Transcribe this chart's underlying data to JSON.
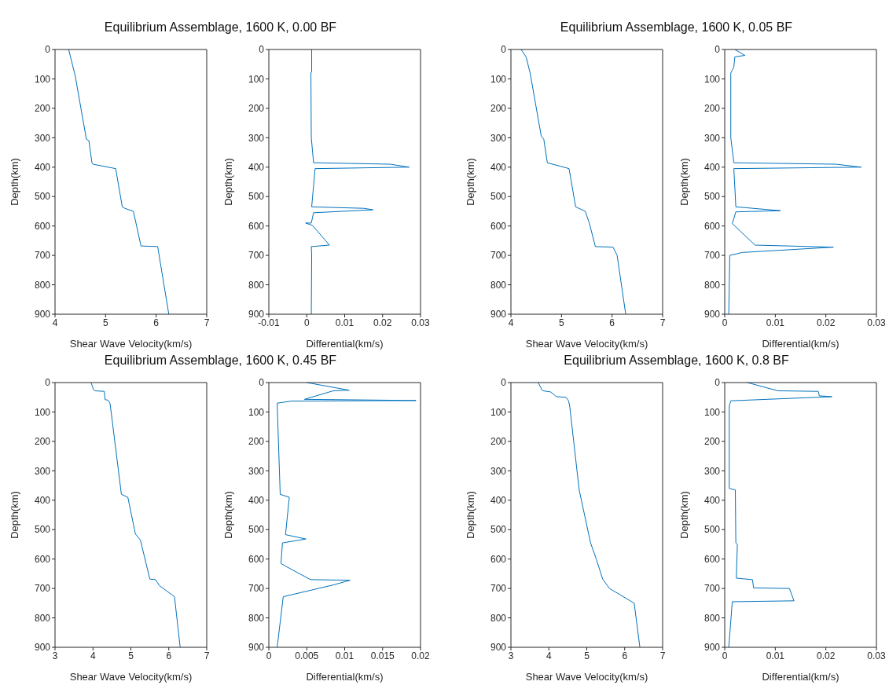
{
  "chart_data": [
    {
      "type": "line",
      "title": "Equilibrium Assemblage, 1600 K, 0.00 BF",
      "xlabel": "Shear Wave Velocity(km/s)",
      "ylabel": "Depth(km)",
      "xlim": [
        4,
        7
      ],
      "xticks": [
        4,
        5,
        6,
        7
      ],
      "ylim": [
        900,
        0
      ],
      "yticks": [
        0,
        100,
        200,
        300,
        400,
        500,
        600,
        700,
        800,
        900
      ],
      "grid": false,
      "series": [
        {
          "color": "#0072bd",
          "x": [
            4.27,
            4.4,
            4.62,
            4.67,
            4.73,
            4.75,
            5.2,
            5.33,
            5.38,
            5.55,
            5.7,
            6.03,
            6.25
          ],
          "values": [
            0,
            90,
            305,
            310,
            385,
            390,
            405,
            535,
            540,
            550,
            668,
            670,
            900
          ]
        }
      ]
    },
    {
      "type": "line",
      "xlabel": "Differential(km/s)",
      "ylabel": "Depth(km)",
      "xlim": [
        -0.01,
        0.03
      ],
      "xticks": [
        -0.01,
        0,
        0.01,
        0.02,
        0.03
      ],
      "ylim": [
        900,
        0
      ],
      "yticks": [
        0,
        100,
        200,
        300,
        400,
        500,
        600,
        700,
        800,
        900
      ],
      "grid": false,
      "series": [
        {
          "color": "#0072bd",
          "x": [
            0.0013,
            0.0013,
            0.0011,
            0.0012,
            0.0018,
            0.022,
            0.027,
            0.0022,
            0.0013,
            0.015,
            0.0175,
            0.0018,
            0.0012,
            -0.0003,
            0.0015,
            0.006,
            0.0012,
            0.0013,
            0.0012
          ],
          "values": [
            0,
            75,
            80,
            300,
            385,
            390,
            400,
            405,
            535,
            540,
            545,
            555,
            590,
            590,
            598,
            665,
            670,
            700,
            900
          ]
        }
      ]
    },
    {
      "type": "line",
      "title": "Equilibrium Assemblage, 1600 K, 0.05 BF",
      "xlabel": "Shear Wave Velocity(km/s)",
      "ylabel": "Depth(km)",
      "xlim": [
        4,
        7
      ],
      "xticks": [
        4,
        5,
        6,
        7
      ],
      "ylim": [
        900,
        0
      ],
      "yticks": [
        0,
        100,
        200,
        300,
        400,
        500,
        600,
        700,
        800,
        900
      ],
      "grid": false,
      "series": [
        {
          "color": "#0072bd",
          "x": [
            4.2,
            4.3,
            4.38,
            4.6,
            4.65,
            4.72,
            5.15,
            5.28,
            5.47,
            5.55,
            5.67,
            6.02,
            6.1,
            6.27
          ],
          "values": [
            0,
            25,
            80,
            295,
            305,
            385,
            405,
            535,
            550,
            590,
            670,
            672,
            700,
            900
          ]
        }
      ]
    },
    {
      "type": "line",
      "xlabel": "Differential(km/s)",
      "ylabel": "Depth(km)",
      "xlim": [
        0,
        0.03
      ],
      "xticks": [
        0,
        0.01,
        0.02,
        0.03
      ],
      "ylim": [
        900,
        0
      ],
      "yticks": [
        0,
        100,
        200,
        300,
        400,
        500,
        600,
        700,
        800,
        900
      ],
      "grid": false,
      "series": [
        {
          "color": "#0072bd",
          "x": [
            0.002,
            0.004,
            0.002,
            0.0018,
            0.0015,
            0.0012,
            0.0012,
            0.0018,
            0.022,
            0.027,
            0.0018,
            0.0022,
            0.011,
            0.0022,
            0.0015,
            0.002,
            0.006,
            0.0215,
            0.0035,
            0.001,
            0.0008
          ],
          "values": [
            0,
            20,
            25,
            60,
            70,
            80,
            300,
            385,
            390,
            400,
            405,
            535,
            548,
            552,
            592,
            600,
            665,
            672,
            690,
            700,
            900
          ]
        }
      ]
    },
    {
      "type": "line",
      "title": "Equilibrium Assemblage, 1600 K, 0.45 BF",
      "xlabel": "Shear Wave Velocity(km/s)",
      "ylabel": "Depth(km)",
      "xlim": [
        3,
        7
      ],
      "xticks": [
        3,
        4,
        5,
        6,
        7
      ],
      "ylim": [
        900,
        0
      ],
      "yticks": [
        0,
        100,
        200,
        300,
        400,
        500,
        600,
        700,
        800,
        900
      ],
      "grid": false,
      "series": [
        {
          "color": "#0072bd",
          "x": [
            3.95,
            4.02,
            4.05,
            4.3,
            4.32,
            4.4,
            4.45,
            4.75,
            4.92,
            5.12,
            5.25,
            5.5,
            5.65,
            5.75,
            6.15,
            6.3
          ],
          "values": [
            0,
            25,
            28,
            30,
            58,
            60,
            70,
            380,
            390,
            515,
            535,
            668,
            670,
            690,
            728,
            900
          ]
        }
      ]
    },
    {
      "type": "line",
      "xlabel": "Differential(km/s)",
      "ylabel": "Depth(km)",
      "xlim": [
        0,
        0.02
      ],
      "xticks": [
        0,
        0.005,
        0.01,
        0.015,
        0.02
      ],
      "ylim": [
        900,
        0
      ],
      "yticks": [
        0,
        100,
        200,
        300,
        400,
        500,
        600,
        700,
        800,
        900
      ],
      "grid": false,
      "series": [
        {
          "color": "#0072bd",
          "x": [
            0.005,
            0.0106,
            0.0085,
            0.0047,
            0.0194,
            0.003,
            0.0011,
            0.0015,
            0.0027,
            0.0022,
            0.0049,
            0.0018,
            0.0016,
            0.0022,
            0.0055,
            0.0107,
            0.0085,
            0.0019,
            0.0011
          ],
          "values": [
            0,
            26,
            28,
            57,
            61,
            63,
            70,
            380,
            390,
            517,
            532,
            545,
            615,
            624,
            670,
            672,
            688,
            728,
            900
          ]
        }
      ]
    },
    {
      "type": "line",
      "title": "Equilibrium Assemblage, 1600 K, 0.8 BF",
      "xlabel": "Shear Wave Velocity(km/s)",
      "ylabel": "Depth(km)",
      "xlim": [
        3,
        7
      ],
      "xticks": [
        3,
        4,
        5,
        6,
        7
      ],
      "ylim": [
        900,
        0
      ],
      "yticks": [
        0,
        100,
        200,
        300,
        400,
        500,
        600,
        700,
        800,
        900
      ],
      "grid": false,
      "series": [
        {
          "color": "#0072bd",
          "x": [
            3.72,
            3.82,
            3.85,
            4.05,
            4.2,
            4.45,
            4.52,
            4.55,
            4.8,
            5.1,
            5.25,
            5.42,
            5.6,
            6.25,
            6.4
          ],
          "values": [
            0,
            25,
            28,
            32,
            48,
            50,
            62,
            80,
            365,
            545,
            600,
            668,
            700,
            750,
            900
          ]
        }
      ]
    },
    {
      "type": "line",
      "xlabel": "Differential(km/s)",
      "ylabel": "Depth(km)",
      "xlim": [
        0,
        0.03
      ],
      "xticks": [
        0,
        0.01,
        0.02,
        0.03
      ],
      "ylim": [
        900,
        0
      ],
      "yticks": [
        0,
        100,
        200,
        300,
        400,
        500,
        600,
        700,
        800,
        900
      ],
      "grid": false,
      "series": [
        {
          "color": "#0072bd",
          "x": [
            0.0045,
            0.0105,
            0.0185,
            0.0187,
            0.0212,
            0.0012,
            0.0009,
            0.0009,
            0.0021,
            0.0022,
            0.0025,
            0.0023,
            0.0055,
            0.0057,
            0.0128,
            0.0137,
            0.0015,
            0.0008
          ],
          "values": [
            0,
            28,
            30,
            45,
            48,
            62,
            80,
            360,
            365,
            545,
            550,
            665,
            670,
            698,
            700,
            742,
            745,
            900
          ]
        }
      ]
    }
  ]
}
